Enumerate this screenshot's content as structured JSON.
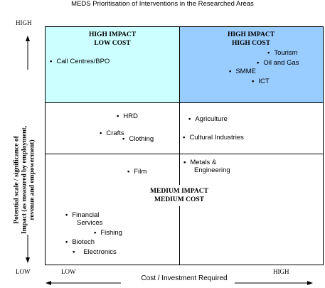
{
  "title": "MEDS Prioritisation of Interventions in the Researched Areas",
  "y_axis": {
    "high": "HIGH",
    "low": "LOW",
    "label_line1": "Potential scale / significance of",
    "label_line2": "Impact (as measured by employment,",
    "label_line3": "revenue and empowerment)"
  },
  "x_axis": {
    "low": "LOW",
    "high": "HIGH",
    "label": "Cost / Investment Required"
  },
  "quadrants": {
    "top_left": {
      "line1": "HIGH IMPACT",
      "line2": "LOW COST",
      "color": "#ccffff"
    },
    "top_right": {
      "line1": "HIGH IMPACT",
      "line2": "HIGH COST",
      "color": "#99ccff"
    },
    "center": {
      "line1": "MEDIUM IMPACT",
      "line2": "MEDIUM COST"
    }
  },
  "items": {
    "call_centres": "Call Centres/BPO",
    "tourism": "Tourism",
    "oil_gas": "Oil and Gas",
    "smme": "SMME",
    "ict": "ICT",
    "hrd": "HRD",
    "crafts": "Crafts",
    "clothing": "Clothing",
    "agriculture": "Agriculture",
    "cultural": "Cultural Industries",
    "film": "Film",
    "metals_1": "Metals &",
    "metals_2": "Engineering",
    "financial_1": "Financial",
    "financial_2": "Services",
    "fishing": "Fishing",
    "biotech": "Biotech",
    "electronics": "Electronics"
  }
}
